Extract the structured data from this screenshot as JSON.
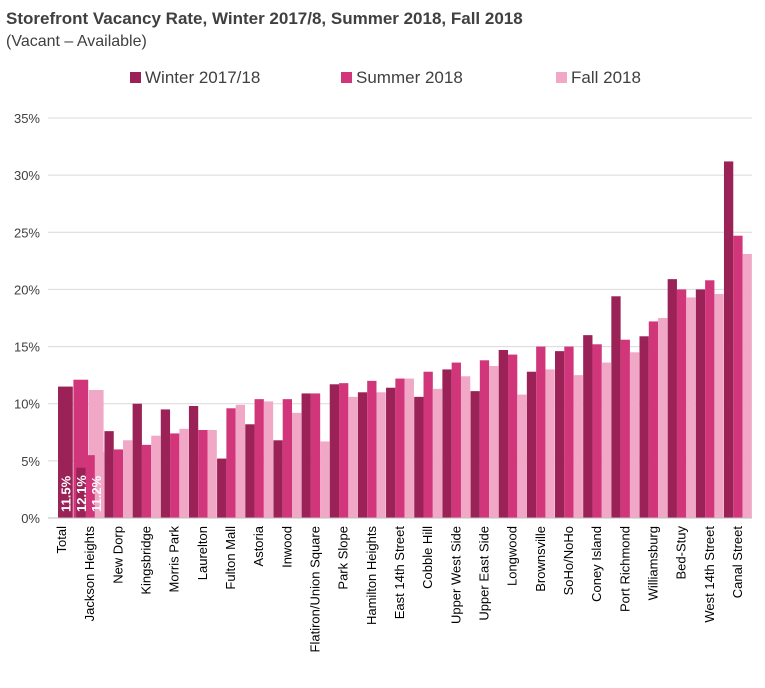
{
  "chart_data": {
    "type": "bar",
    "title": "Storefront Vacancy Rate, Winter 2017/8, Summer 2018, Fall 2018",
    "subtitle": "(Vacant – Available)",
    "ylim": [
      0,
      35
    ],
    "yticks": [
      "0%",
      "5%",
      "10%",
      "15%",
      "20%",
      "25%",
      "30%",
      "35%"
    ],
    "grid": true,
    "legend_position": "top",
    "categories": [
      "Total",
      "Jackson Heights",
      "New Dorp",
      "Kingsbridge",
      "Morris Park",
      "Laurelton",
      "Fulton Mall",
      "Astoria",
      "Inwood",
      "Flatiron/Union Square",
      "Park Slope",
      "Hamilton Heights",
      "East 14th Street",
      "Cobble Hill",
      "Upper West Side",
      "Upper East Side",
      "Longwood",
      "Brownsville",
      "SoHo/NoHo",
      "Coney Island",
      "Port Richmond",
      "Williamsburg",
      "Bed-Stuy",
      "West 14th Street",
      "Canal Street"
    ],
    "series": [
      {
        "name": "Winter 2017/18",
        "color": "#9b2257",
        "values": [
          11.5,
          4.4,
          7.6,
          10.0,
          9.5,
          9.8,
          5.2,
          8.2,
          6.8,
          10.9,
          11.7,
          11.0,
          11.4,
          10.6,
          13.0,
          11.1,
          14.7,
          12.8,
          14.6,
          16.0,
          19.4,
          15.9,
          20.9,
          20.0,
          31.2
        ]
      },
      {
        "name": "Summer 2018",
        "color": "#d1367b",
        "values": [
          12.1,
          5.5,
          6.0,
          6.4,
          7.4,
          7.7,
          9.6,
          10.4,
          10.4,
          10.9,
          11.8,
          12.0,
          12.2,
          12.8,
          13.6,
          13.8,
          14.3,
          15.0,
          15.0,
          15.2,
          15.6,
          17.2,
          20.0,
          20.8,
          24.7
        ]
      },
      {
        "name": "Fall 2018",
        "color": "#f0a8c6",
        "values": [
          11.2,
          5.8,
          6.8,
          7.2,
          7.8,
          7.7,
          9.9,
          10.2,
          9.2,
          6.7,
          10.6,
          11.0,
          12.2,
          11.3,
          12.4,
          13.3,
          10.8,
          13.0,
          12.5,
          13.6,
          14.5,
          17.5,
          19.3,
          19.6,
          23.1
        ]
      }
    ],
    "data_labels": [
      {
        "category": "Total",
        "series": "Winter 2017/18",
        "text": "11.5%"
      },
      {
        "category": "Total",
        "series": "Summer 2018",
        "text": "12.1%"
      },
      {
        "category": "Total",
        "series": "Fall 2018",
        "text": "11.2%"
      }
    ]
  }
}
